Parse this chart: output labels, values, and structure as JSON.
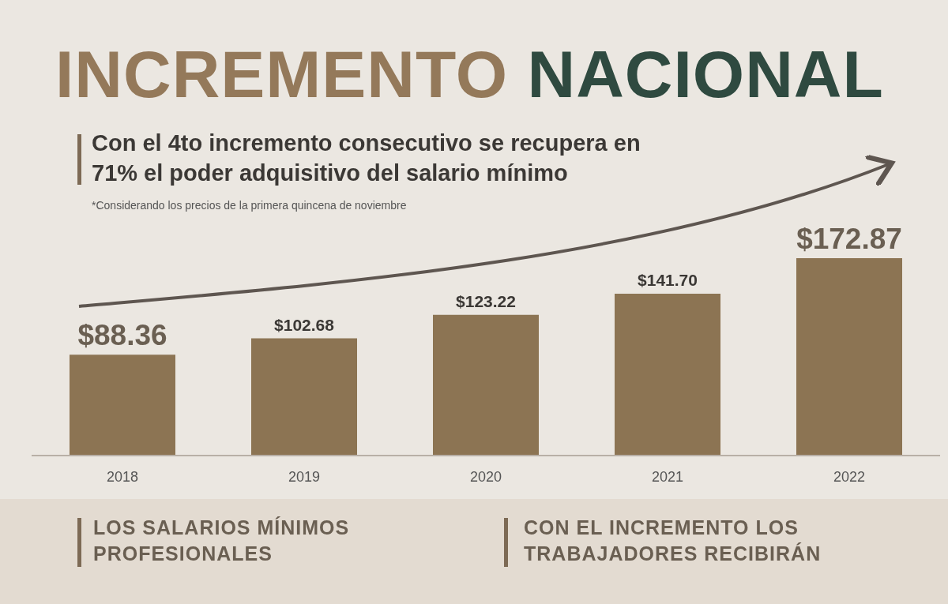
{
  "chart_data": {
    "type": "bar",
    "title": "INCREMENTO NACIONAL",
    "subtitle": "Con el 4to incremento consecutivo se recupera en 71% el poder adquisitivo del salario mínimo",
    "annotations": [
      "*Considerando los precios de la primera quincena de noviembre",
      "LOS SALARIOS MÍNIMOS PROFESIONALES",
      "CON EL INCREMENTO LOS TRABAJADORES RECIBIRÁN"
    ],
    "categories": [
      "2018",
      "2019",
      "2020",
      "2021",
      "2022"
    ],
    "values": [
      88.36,
      102.68,
      123.22,
      141.7,
      172.87
    ],
    "value_labels": [
      "$88.36",
      "$102.68",
      "$123.22",
      "$141.70",
      "$172.87"
    ],
    "color": "#8c7453",
    "tick_labels": "x"
  }
}
